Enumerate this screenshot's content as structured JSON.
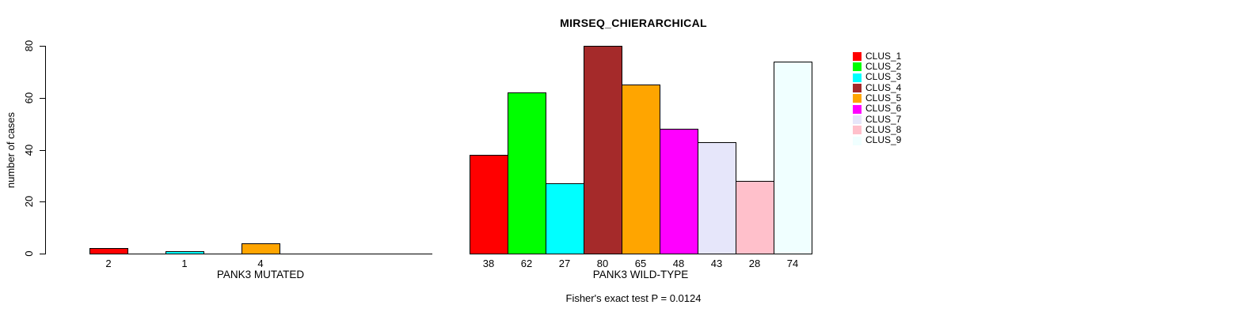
{
  "chart_data": {
    "type": "bar",
    "title": "MIRSEQ_CHIERARCHICAL",
    "ylabel": "number of cases",
    "ylim": [
      0,
      80
    ],
    "yticks": [
      0,
      20,
      40,
      60,
      80
    ],
    "grid": false,
    "legend_position": "right",
    "annotation": "Fisher's exact test P = 0.0124",
    "clusters": [
      {
        "name": "CLUS_1",
        "color": "#FF0000"
      },
      {
        "name": "CLUS_2",
        "color": "#00FF00"
      },
      {
        "name": "CLUS_3",
        "color": "#00FFFF"
      },
      {
        "name": "CLUS_4",
        "color": "#A52A2A"
      },
      {
        "name": "CLUS_5",
        "color": "#FFA500"
      },
      {
        "name": "CLUS_6",
        "color": "#FF00FF"
      },
      {
        "name": "CLUS_7",
        "color": "#E6E6FA"
      },
      {
        "name": "CLUS_8",
        "color": "#FFC0CB"
      },
      {
        "name": "CLUS_9",
        "color": "#F0FFFF"
      }
    ],
    "groups": [
      {
        "label": "PANK3 MUTATED",
        "values": [
          2,
          0,
          1,
          0,
          4,
          0,
          0,
          0,
          0
        ]
      },
      {
        "label": "PANK3 WILD-TYPE",
        "values": [
          38,
          62,
          27,
          80,
          65,
          48,
          43,
          28,
          74
        ]
      }
    ]
  }
}
